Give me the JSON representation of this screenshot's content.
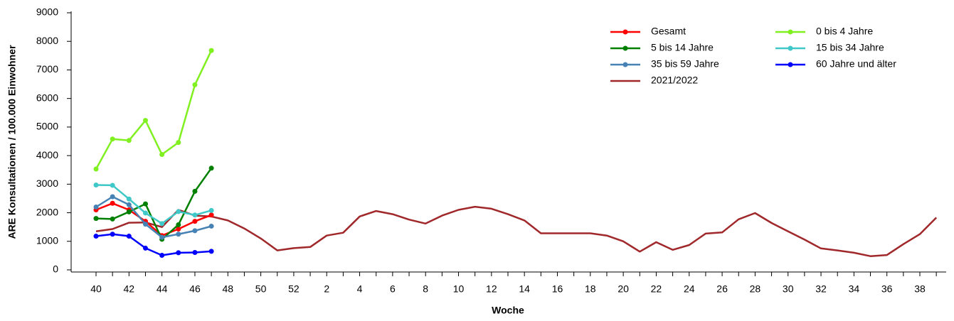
{
  "chart_data": {
    "type": "line",
    "x_label": "Woche",
    "y_label": "ARE Konsultationen / 100.000 Einwohner",
    "categories": [
      40,
      null,
      42,
      null,
      44,
      null,
      46,
      null,
      48,
      null,
      50,
      null,
      52,
      null,
      2,
      null,
      4,
      null,
      6,
      null,
      8,
      null,
      10,
      null,
      12,
      null,
      14,
      null,
      16,
      null,
      18,
      null,
      20,
      null,
      22,
      null,
      24,
      null,
      26,
      null,
      28,
      null,
      30,
      null,
      32,
      null,
      34,
      null,
      36,
      null,
      38,
      null
    ],
    "ylim": [
      0,
      9000
    ],
    "yticks": [
      0,
      1000,
      2000,
      3000,
      4000,
      5000,
      6000,
      7000,
      8000,
      9000
    ],
    "legend": "top-right",
    "series": [
      {
        "name": "Gesamt",
        "color": "#ff0000",
        "marker": true,
        "values": [
          2100,
          2330,
          2100,
          1700,
          1200,
          1430,
          1700,
          1920,
          null,
          null,
          null,
          null,
          null,
          null,
          null,
          null,
          null,
          null,
          null,
          null,
          null,
          null,
          null,
          null,
          null,
          null,
          null,
          null,
          null,
          null,
          null,
          null,
          null,
          null,
          null,
          null,
          null,
          null,
          null,
          null,
          null,
          null,
          null,
          null,
          null,
          null,
          null,
          null,
          null,
          null,
          null,
          null
        ]
      },
      {
        "name": "0 bis 4 Jahre",
        "color": "#80f020",
        "marker": true,
        "values": [
          3530,
          4580,
          4530,
          5230,
          4040,
          4460,
          6480,
          7680,
          null,
          null,
          null,
          null,
          null,
          null,
          null,
          null,
          null,
          null,
          null,
          null,
          null,
          null,
          null,
          null,
          null,
          null,
          null,
          null,
          null,
          null,
          null,
          null,
          null,
          null,
          null,
          null,
          null,
          null,
          null,
          null,
          null,
          null,
          null,
          null,
          null,
          null,
          null,
          null,
          null,
          null,
          null,
          null
        ]
      },
      {
        "name": "5 bis 14 Jahre",
        "color": "#008000",
        "marker": true,
        "values": [
          1800,
          1780,
          2030,
          2310,
          1070,
          1580,
          2750,
          3560,
          null,
          null,
          null,
          null,
          null,
          null,
          null,
          null,
          null,
          null,
          null,
          null,
          null,
          null,
          null,
          null,
          null,
          null,
          null,
          null,
          null,
          null,
          null,
          null,
          null,
          null,
          null,
          null,
          null,
          null,
          null,
          null,
          null,
          null,
          null,
          null,
          null,
          null,
          null,
          null,
          null,
          null,
          null,
          null
        ]
      },
      {
        "name": "15 bis 34 Jahre",
        "color": "#40c8c8",
        "marker": true,
        "values": [
          2970,
          2960,
          2480,
          1990,
          1620,
          2040,
          1920,
          2080,
          null,
          null,
          null,
          null,
          null,
          null,
          null,
          null,
          null,
          null,
          null,
          null,
          null,
          null,
          null,
          null,
          null,
          null,
          null,
          null,
          null,
          null,
          null,
          null,
          null,
          null,
          null,
          null,
          null,
          null,
          null,
          null,
          null,
          null,
          null,
          null,
          null,
          null,
          null,
          null,
          null,
          null,
          null,
          null
        ]
      },
      {
        "name": "35 bis 59 Jahre",
        "color": "#4682b4",
        "marker": true,
        "values": [
          2200,
          2560,
          2280,
          1600,
          1140,
          1250,
          1370,
          1530,
          null,
          null,
          null,
          null,
          null,
          null,
          null,
          null,
          null,
          null,
          null,
          null,
          null,
          null,
          null,
          null,
          null,
          null,
          null,
          null,
          null,
          null,
          null,
          null,
          null,
          null,
          null,
          null,
          null,
          null,
          null,
          null,
          null,
          null,
          null,
          null,
          null,
          null,
          null,
          null,
          null,
          null,
          null,
          null
        ]
      },
      {
        "name": "60 Jahre und älter",
        "color": "#0000ff",
        "marker": true,
        "values": [
          1180,
          1250,
          1180,
          760,
          510,
          600,
          610,
          650,
          null,
          null,
          null,
          null,
          null,
          null,
          null,
          null,
          null,
          null,
          null,
          null,
          null,
          null,
          null,
          null,
          null,
          null,
          null,
          null,
          null,
          null,
          null,
          null,
          null,
          null,
          null,
          null,
          null,
          null,
          null,
          null,
          null,
          null,
          null,
          null,
          null,
          null,
          null,
          null,
          null,
          null,
          null,
          null
        ]
      },
      {
        "name": "2021/2022",
        "color": "#a0282a",
        "marker": false,
        "values": [
          1350,
          1430,
          1650,
          1660,
          1500,
          2100,
          1900,
          1870,
          1730,
          1450,
          1100,
          680,
          760,
          800,
          1200,
          1300,
          1870,
          2060,
          1950,
          1760,
          1620,
          1900,
          2100,
          2210,
          2140,
          1950,
          1730,
          1280,
          1280,
          1280,
          1280,
          1200,
          1000,
          640,
          970,
          700,
          870,
          1270,
          1310,
          1770,
          1990,
          1640,
          1350,
          1060,
          750,
          680,
          600,
          480,
          520,
          900,
          1250,
          1830
        ]
      }
    ]
  }
}
